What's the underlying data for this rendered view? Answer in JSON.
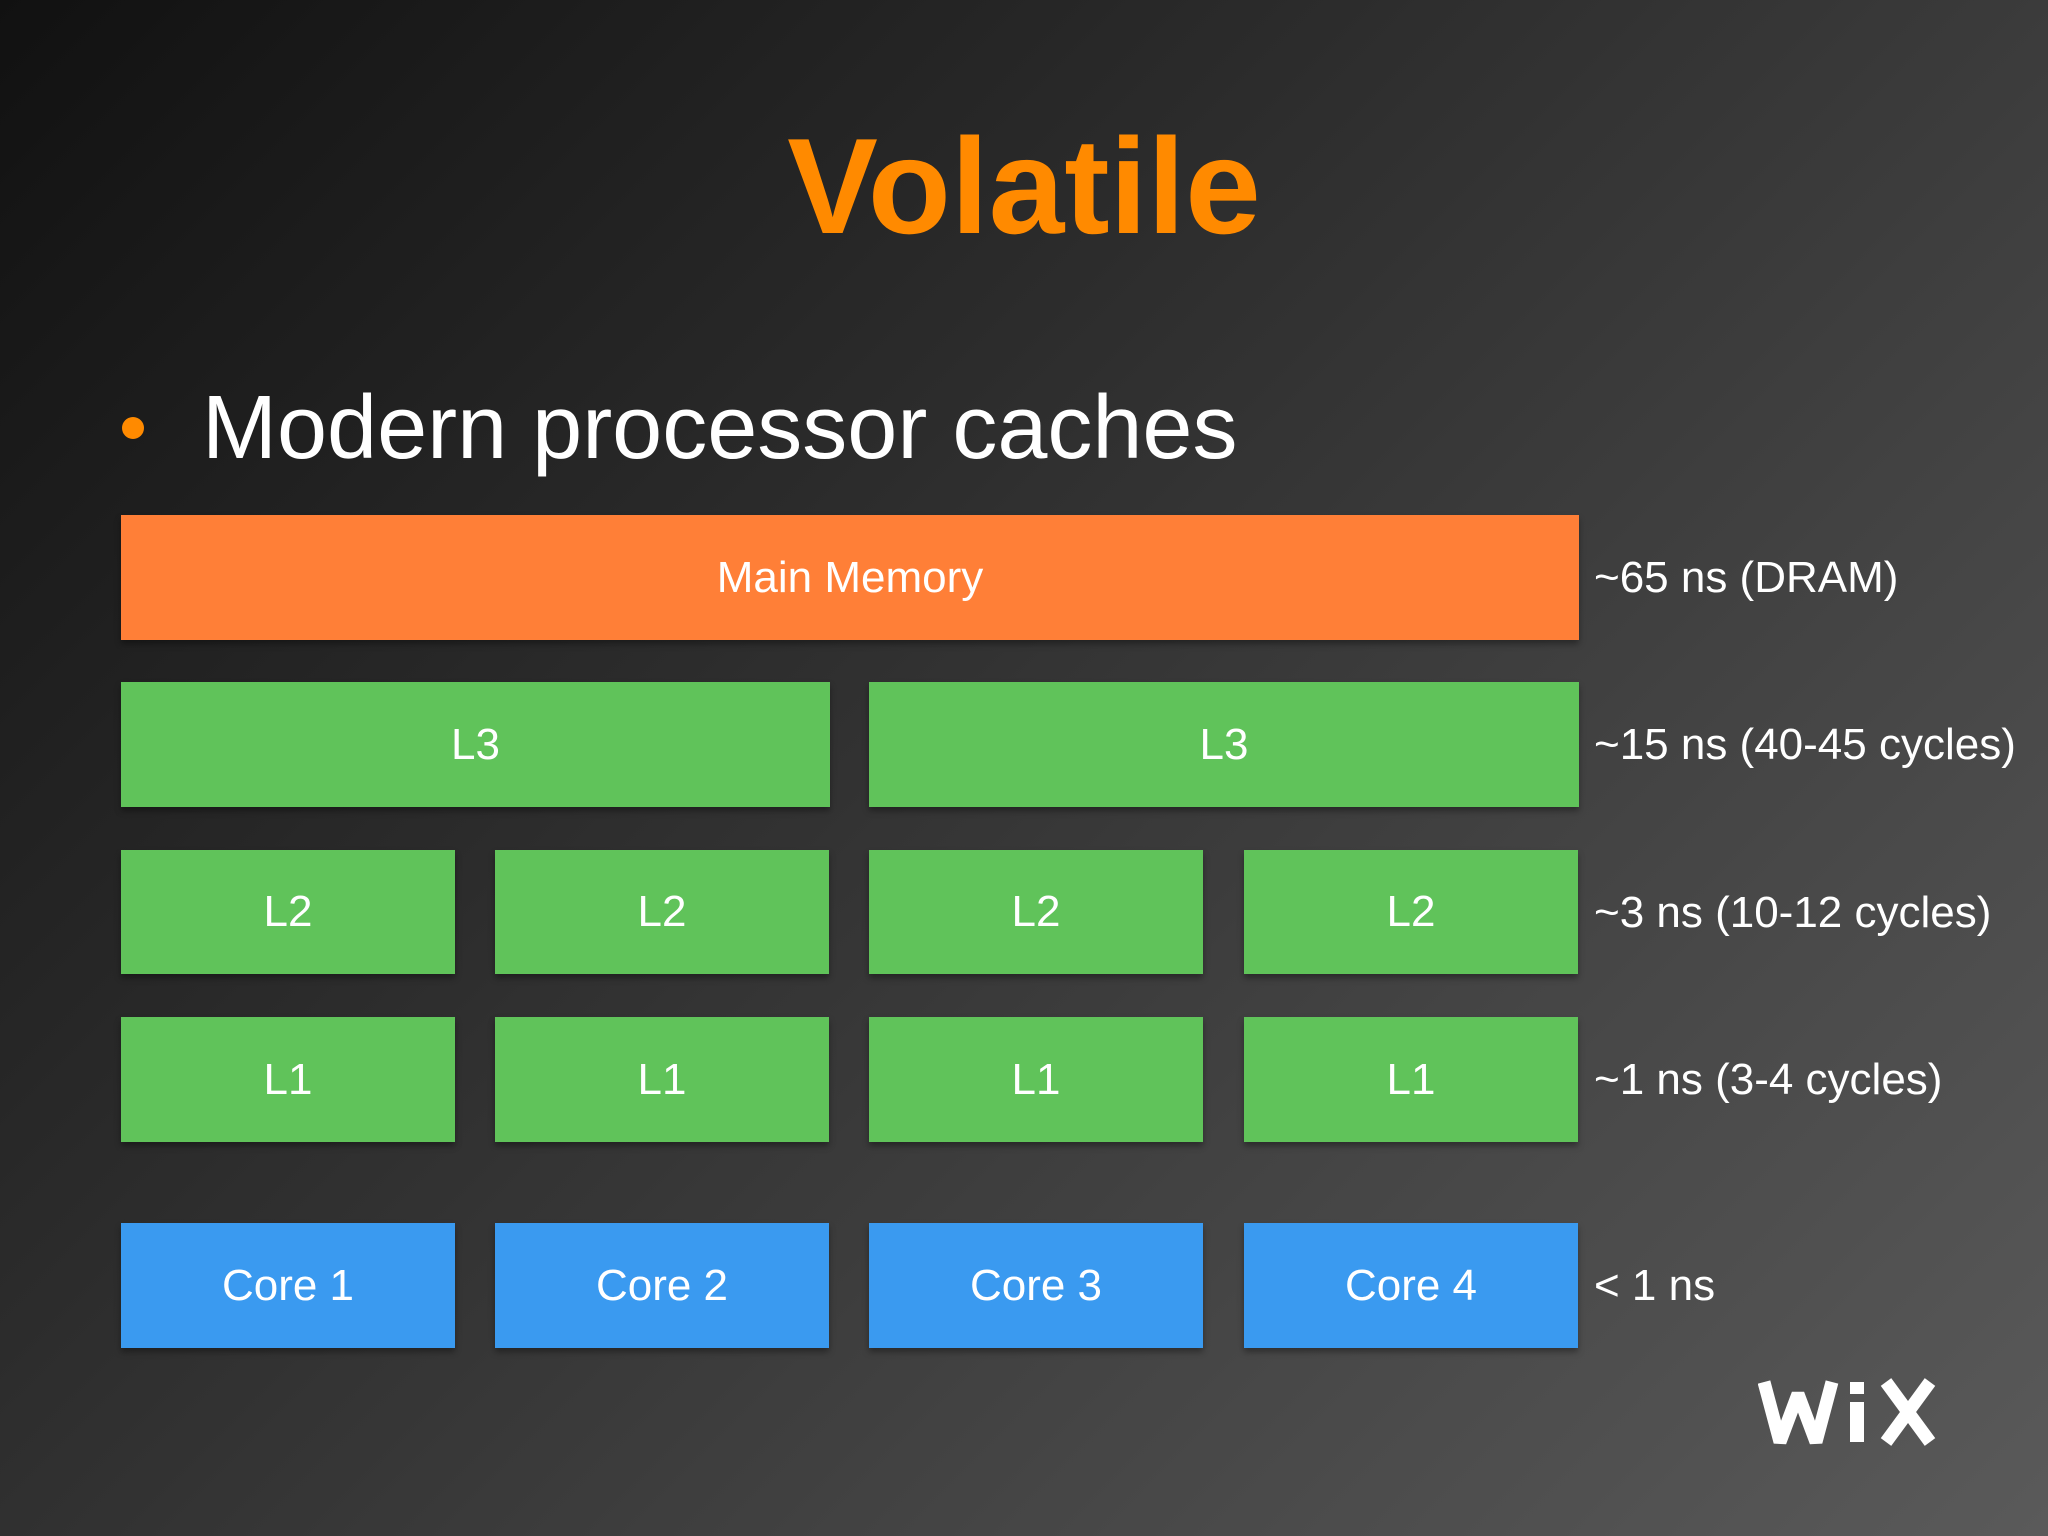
{
  "title": "Volatile",
  "bullet": "Modern processor caches",
  "diagram": {
    "main_memory": "Main Memory",
    "l3": [
      "L3",
      "L3"
    ],
    "l2": [
      "L2",
      "L2",
      "L2",
      "L2"
    ],
    "l1": [
      "L1",
      "L1",
      "L1",
      "L1"
    ],
    "cores": [
      "Core 1",
      "Core 2",
      "Core 3",
      "Core 4"
    ],
    "latencies": {
      "main_memory": "~65 ns (DRAM)",
      "l3": "~15 ns (40-45 cycles)",
      "l2": "~3 ns (10-12 cycles)",
      "l1": "~1 ns (3-4 cycles)",
      "core": "< 1 ns"
    }
  },
  "logo_text": "WiX",
  "colors": {
    "title": "#ff8a00",
    "main_memory": "#ff7f37",
    "cache": "#60c35a",
    "core": "#3a9af0"
  }
}
